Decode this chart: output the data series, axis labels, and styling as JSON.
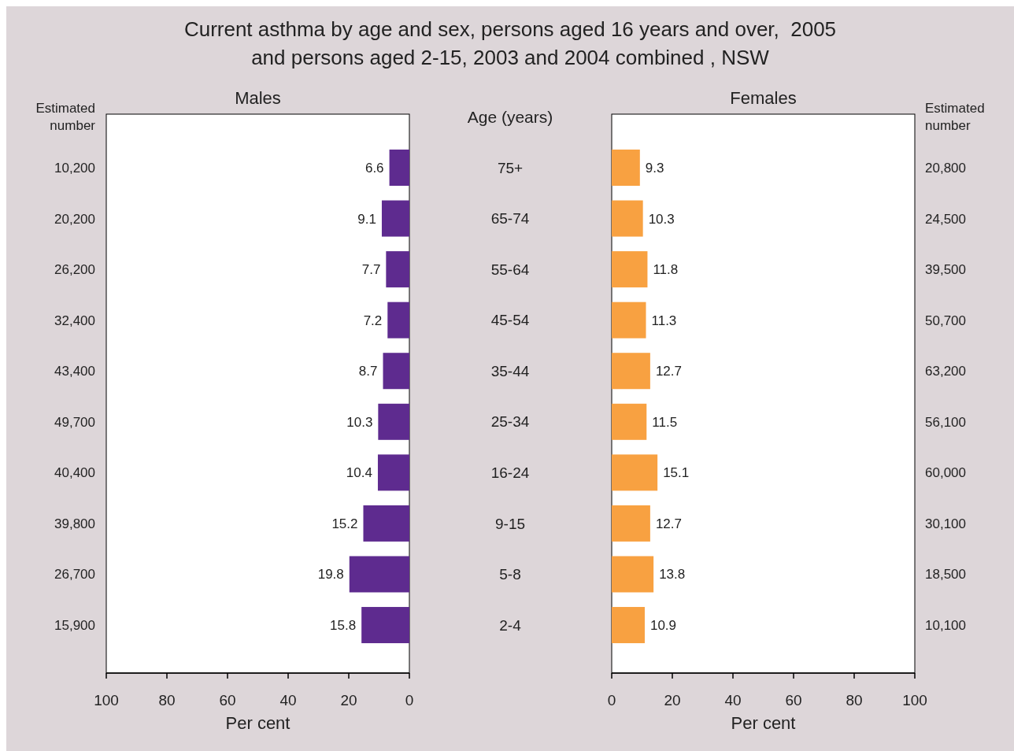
{
  "chart_data": [
    {
      "type": "bar",
      "orientation": "horizontal",
      "title": "Current asthma by age and sex, persons aged 16 years and over,  2005\nand persons aged 2-15, 2003 and 2004 combined , NSW",
      "subtitle": "Males",
      "xlabel": "Per cent",
      "ylabel": "Age (years)",
      "categories": [
        "75+",
        "65-74",
        "55-64",
        "45-54",
        "35-44",
        "25-34",
        "16-24",
        "9-15",
        "5-8",
        "2-4"
      ],
      "values": [
        6.6,
        9.1,
        7.7,
        7.2,
        8.7,
        10.3,
        10.4,
        15.2,
        19.8,
        15.8
      ],
      "color": "#5e2b8f",
      "data_labels": true,
      "xlim": [
        100,
        0
      ],
      "xticks": [
        100,
        80,
        60,
        40,
        20,
        0
      ],
      "annotations": [
        "Estimated number",
        "10,200",
        "20,200",
        "26,200",
        "32,400",
        "43,400",
        "49,700",
        "40,400",
        "39,800",
        "26,700",
        "15,900"
      ]
    },
    {
      "type": "bar",
      "orientation": "horizontal",
      "title": "Females",
      "xlabel": "Per cent",
      "tick_labels": "x",
      "categories": [
        "75+",
        "65-74",
        "55-64",
        "45-54",
        "35-44",
        "25-34",
        "16-24",
        "9-15",
        "5-8",
        "2-4"
      ],
      "values": [
        9.3,
        10.3,
        11.8,
        11.3,
        12.7,
        11.5,
        15.1,
        12.7,
        13.8,
        10.9
      ],
      "color": "#f8a141",
      "data_labels": true,
      "xlim": [
        0,
        100
      ],
      "xticks": [
        0,
        20,
        40,
        60,
        80,
        100
      ],
      "annotations": [
        "Estimated number",
        "20,800",
        "24,500",
        "39,500",
        "50,700",
        "63,200",
        "56,100",
        "60,000",
        "30,100",
        "18,500",
        "10,100"
      ]
    }
  ]
}
